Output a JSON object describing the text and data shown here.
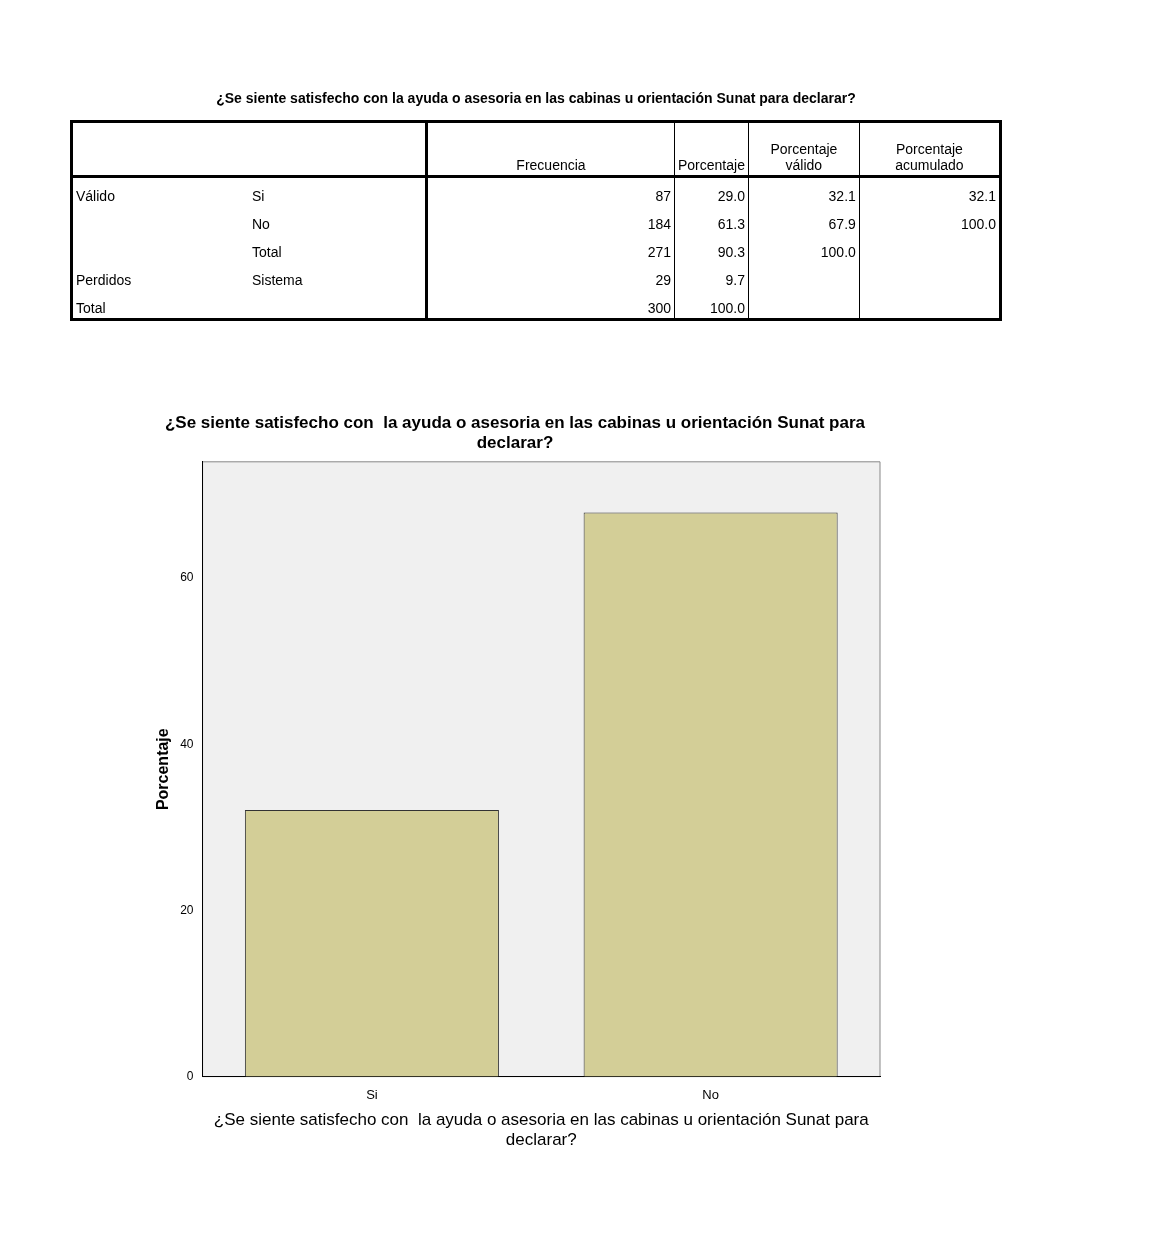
{
  "chart_data": [
    {
      "type": "other",
      "title": "¿Se siente satisfecho con  la ayuda o asesoria en las cabinas u orientación Sunat para declarar?",
      "annotations": [
        "Frecuencia",
        "Porcentaje",
        "Porcentaje válido",
        "Porcentaje acumulado",
        "Válido",
        "Si",
        "87",
        "29.0",
        "32.1",
        "32.1",
        "No",
        "184",
        "61.3",
        "67.9",
        "100.0",
        "Total",
        "271",
        "90.3",
        "100.0",
        "Perdidos",
        "Sistema",
        "29",
        "9.7",
        "Total",
        "300",
        "100.0"
      ]
    },
    {
      "type": "bar",
      "title": "¿Se siente satisfecho con  la ayuda o asesoria en las cabinas u orientación Sunat para declarar?",
      "xlabel": "¿Se siente satisfecho con  la ayuda o asesoria en las cabinas u orientación Sunat para declarar?",
      "ylabel": "Porcentaje",
      "categories": [
        "Si",
        "No"
      ],
      "values": [
        32.1,
        67.9
      ],
      "color": "#d3ce97",
      "ylim": [
        0,
        74
      ],
      "yticks": [
        0,
        20,
        40,
        60
      ],
      "grid": false,
      "legend": false
    }
  ]
}
